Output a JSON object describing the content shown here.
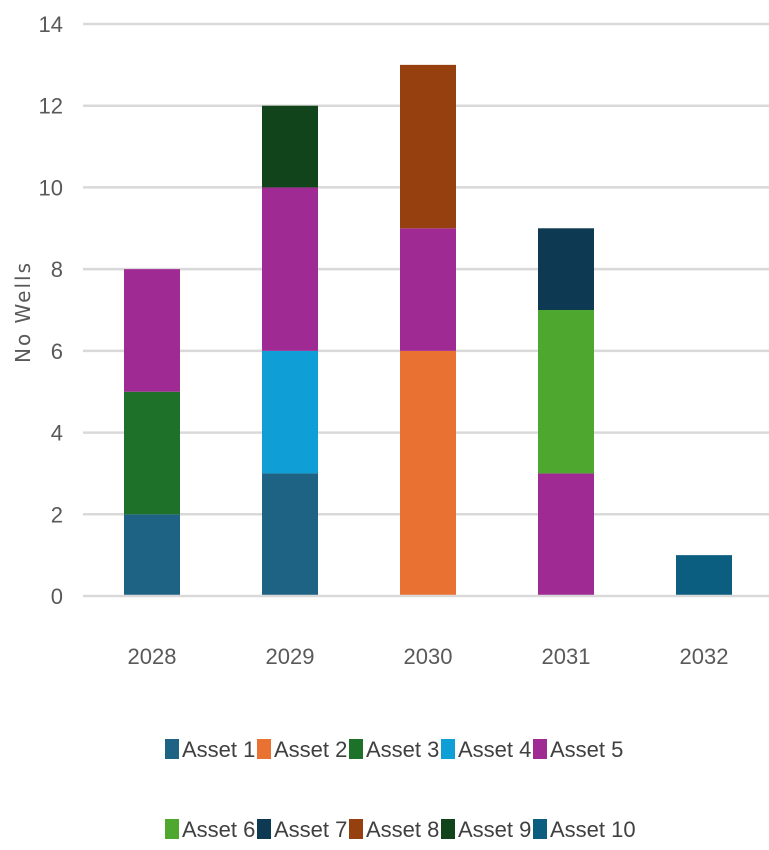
{
  "chart_data": {
    "type": "bar",
    "stacked": true,
    "categories": [
      "2028",
      "2029",
      "2030",
      "2031",
      "2032"
    ],
    "ylabel": "No Wells",
    "ylim": [
      0,
      14
    ],
    "yticks": [
      0,
      2,
      4,
      6,
      8,
      10,
      12,
      14
    ],
    "grid": true,
    "legend_position": "bottom",
    "series": [
      {
        "name": "Asset 1",
        "color": "#1F6384",
        "values": [
          2,
          3,
          0,
          0,
          0
        ]
      },
      {
        "name": "Asset 2",
        "color": "#E97132",
        "values": [
          0,
          0,
          6,
          0,
          0
        ]
      },
      {
        "name": "Asset 3",
        "color": "#1E7128",
        "values": [
          3,
          0,
          0,
          0,
          0
        ]
      },
      {
        "name": "Asset 4",
        "color": "#109ED6",
        "values": [
          0,
          3,
          0,
          0,
          0
        ]
      },
      {
        "name": "Asset 5",
        "color": "#A02A93",
        "values": [
          3,
          4,
          3,
          3,
          0
        ]
      },
      {
        "name": "Asset 6",
        "color": "#4EA72E",
        "values": [
          0,
          0,
          0,
          4,
          0
        ]
      },
      {
        "name": "Asset 7",
        "color": "#0D3A52",
        "values": [
          0,
          0,
          0,
          2,
          0
        ]
      },
      {
        "name": "Asset 8",
        "color": "#963F0F",
        "values": [
          0,
          0,
          4,
          0,
          0
        ]
      },
      {
        "name": "Asset 9",
        "color": "#11441A",
        "values": [
          0,
          2,
          0,
          0,
          0
        ]
      },
      {
        "name": "Asset 10",
        "color": "#0C5E80",
        "values": [
          0,
          0,
          0,
          0,
          1
        ]
      }
    ]
  }
}
